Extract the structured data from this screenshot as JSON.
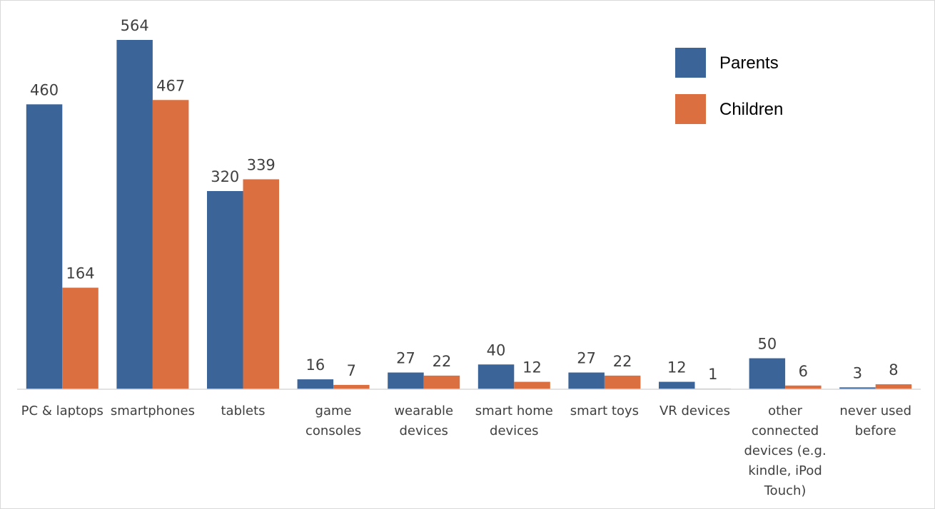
{
  "chart_data": {
    "type": "bar",
    "categories": [
      [
        "PC & laptops"
      ],
      [
        "smartphones"
      ],
      [
        "tablets"
      ],
      [
        "game",
        "consoles"
      ],
      [
        "wearable",
        "devices"
      ],
      [
        "smart home",
        "devices"
      ],
      [
        "smart toys"
      ],
      [
        "VR devices"
      ],
      [
        "other",
        "connected",
        "devices (e.g.",
        "kindle, iPod",
        "Touch)"
      ],
      [
        "never used",
        "before"
      ]
    ],
    "series": [
      {
        "name": "Parents",
        "color": "#3B6498",
        "values": [
          460,
          564,
          320,
          16,
          27,
          40,
          27,
          12,
          50,
          3
        ]
      },
      {
        "name": "Children",
        "color": "#DB6F40",
        "values": [
          164,
          467,
          339,
          7,
          22,
          12,
          22,
          1,
          6,
          8
        ]
      }
    ],
    "ylim": [
      0,
      564
    ],
    "grid": false,
    "legend_position": "top-right",
    "axis_color": "#D9D9D9",
    "frame_color": "#D9D9D9"
  }
}
